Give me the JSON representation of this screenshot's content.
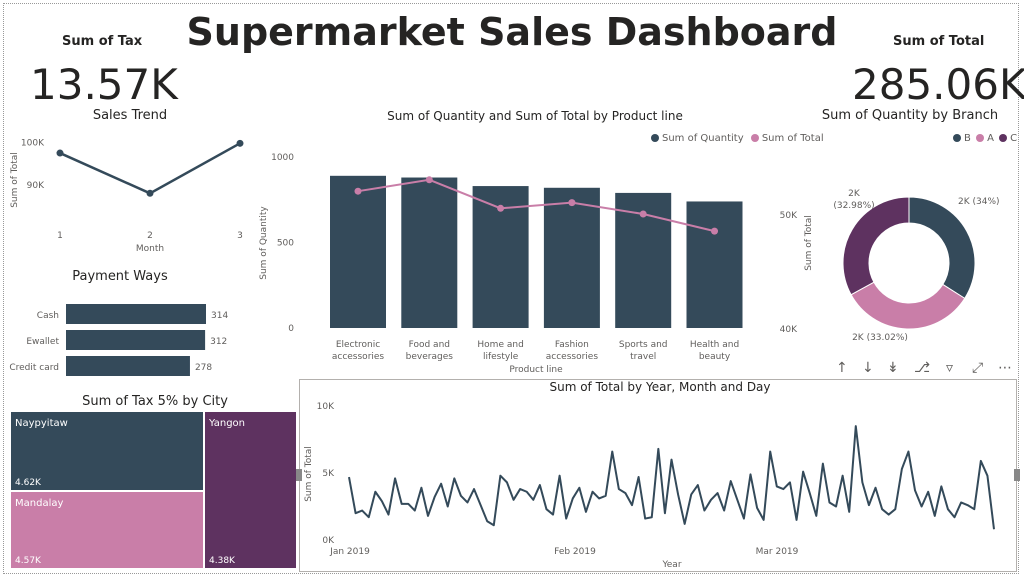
{
  "title": "Supermarket Sales Dashboard",
  "cards": [
    {
      "label": "Sum of Tax",
      "value": "13.57K"
    },
    {
      "label": "Sum of Total",
      "value": "285.06K"
    }
  ],
  "colors": {
    "navy": "#344a5a",
    "pink": "#c97ea8",
    "purple": "#5e3260",
    "gray": "#605e5c"
  },
  "toolbar_icons": [
    "arrow-up-icon",
    "arrow-down-icon",
    "double-arrow-down-icon",
    "expand-hierarchy-icon",
    "filter-icon",
    "focus-mode-icon",
    "more-options-icon"
  ],
  "chart_data": [
    {
      "id": "sales_trend",
      "type": "line",
      "title": "Sales Trend",
      "xlabel": "Month",
      "ylabel": "Sum of Total",
      "x": [
        1,
        2,
        3
      ],
      "x_ticks": [
        "1",
        "2",
        "3"
      ],
      "values": [
        97500,
        88000,
        99800
      ],
      "y_ticks": [
        "100K",
        "90K"
      ],
      "ylim": [
        85000,
        102000
      ]
    },
    {
      "id": "combo",
      "type": "bar",
      "title": "Sum of Quantity and Sum of Total by Product line",
      "xlabel": "Product line",
      "ylabel": "Sum of Quantity",
      "categories": [
        "Electronic accessories",
        "Food and beverages",
        "Home and lifestyle",
        "Fashion accessories",
        "Sports and travel",
        "Health and beauty"
      ],
      "category_lines": [
        [
          "Electronic",
          "accessories"
        ],
        [
          "Food and",
          "beverages"
        ],
        [
          "Home and",
          "lifestyle"
        ],
        [
          "Fashion",
          "accessories"
        ],
        [
          "Sports and",
          "travel"
        ],
        [
          "Health and",
          "beauty"
        ]
      ],
      "series": [
        {
          "name": "Sum of Quantity",
          "values": [
            890,
            880,
            830,
            820,
            790,
            740
          ]
        },
        {
          "name": "Sum of Total",
          "values": [
            54000,
            56000,
            51000,
            52000,
            50000,
            47000
          ]
        }
      ],
      "y_ticks": [
        "1000",
        "500",
        "0"
      ],
      "ylim": [
        0,
        1000
      ]
    },
    {
      "id": "payment",
      "type": "bar",
      "orientation": "horizontal",
      "title": "Payment Ways",
      "categories": [
        "Cash",
        "Ewallet",
        "Credit card"
      ],
      "values": [
        314,
        312,
        278
      ],
      "labels": [
        "314",
        "312",
        "278"
      ]
    },
    {
      "id": "branch",
      "type": "pie",
      "donut": true,
      "title": "Sum of Quantity by Branch",
      "legend": [
        "B",
        "A",
        "C"
      ],
      "values": [
        34,
        33.02,
        32.98
      ],
      "labels": [
        "2K (34%)",
        "2K (33.02%)",
        "2K (32.98%)"
      ],
      "label_lines": [
        [
          "2K (34%)"
        ],
        [
          "2K (33.02%)"
        ],
        [
          "2K",
          "(32.98%)"
        ]
      ],
      "axis_label": "Sum of Total",
      "axis_ticks": [
        "50K",
        "40K"
      ]
    },
    {
      "id": "city",
      "type": "treemap",
      "title": "Sum of Tax 5% by City",
      "categories": [
        "Naypyitaw",
        "Mandalay",
        "Yangon"
      ],
      "values": [
        4.62,
        4.57,
        4.38
      ],
      "labels": [
        "4.62K",
        "4.57K",
        "4.38K"
      ]
    },
    {
      "id": "daily",
      "type": "line",
      "title": "Sum of Total by Year, Month and Day",
      "xlabel": "Year",
      "ylabel": "Sum of Total",
      "x_ticks": [
        "Jan 2019",
        "Feb 2019",
        "Mar 2019"
      ],
      "y_ticks": [
        "10K",
        "5K",
        "0K"
      ],
      "ylim": [
        0,
        10000
      ],
      "values": [
        4700,
        2000,
        2200,
        1700,
        3600,
        2900,
        1900,
        4600,
        2700,
        2700,
        2200,
        3900,
        1800,
        3200,
        4200,
        2500,
        4600,
        3300,
        2800,
        3800,
        2600,
        1400,
        1100,
        4800,
        4300,
        3000,
        3800,
        3600,
        3000,
        4100,
        2300,
        1900,
        4800,
        1600,
        3100,
        3900,
        2100,
        3600,
        3100,
        3300,
        6600,
        3800,
        3500,
        2600,
        4700,
        1600,
        1700,
        6800,
        2000,
        6000,
        3400,
        1200,
        3400,
        4100,
        2200,
        3000,
        3500,
        2200,
        4400,
        3000,
        1600,
        4900,
        2400,
        1500,
        6600,
        4000,
        3800,
        4300,
        1500,
        5100,
        3500,
        1800,
        5700,
        2800,
        2500,
        4800,
        2100,
        8500,
        4300,
        2600,
        3900,
        2300,
        1900,
        2300,
        5300,
        6600,
        3700,
        2500,
        3600,
        1800,
        4000,
        2300,
        1700,
        2800,
        2600,
        2300,
        5900,
        4800,
        800
      ]
    }
  ]
}
